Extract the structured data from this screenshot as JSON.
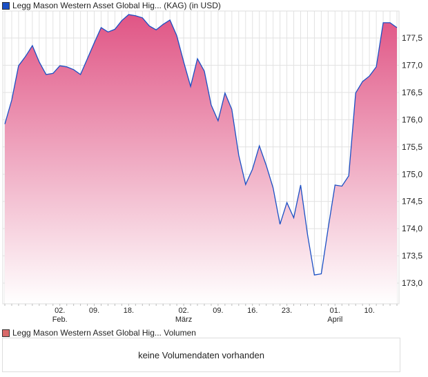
{
  "legend_main": "Legg Mason Western Asset Global Hig... (KAG) (in USD)",
  "legend_volume": "Legg Mason Western Asset Global Hig... Volumen",
  "volume_message": "keine Volumendaten vorhanden",
  "colors": {
    "line": "#1a4fc4",
    "fill_top": "#e05585",
    "legend_main": "#1a4fc4",
    "legend_volume": "#d96a6a"
  },
  "chart_data": {
    "type": "area",
    "title": "Legg Mason Western Asset Global Hig... (KAG) (in USD)",
    "ylim": [
      172.7,
      178.0
    ],
    "yticks": [
      "173,0",
      "173,5",
      "174,0",
      "174,5",
      "175,0",
      "175,5",
      "176,0",
      "176,5",
      "177,0",
      "177,5"
    ],
    "ytick_values": [
      173.0,
      173.5,
      174.0,
      174.5,
      175.0,
      175.5,
      176.0,
      176.5,
      177.0,
      177.5
    ],
    "xticks": [
      {
        "index": 8,
        "label": "02.",
        "sub": "Feb."
      },
      {
        "index": 13,
        "label": "09.",
        "sub": ""
      },
      {
        "index": 18,
        "label": "18.",
        "sub": ""
      },
      {
        "index": 26,
        "label": "02.",
        "sub": "März"
      },
      {
        "index": 31,
        "label": "09.",
        "sub": ""
      },
      {
        "index": 36,
        "label": "16.",
        "sub": ""
      },
      {
        "index": 41,
        "label": "23.",
        "sub": ""
      },
      {
        "index": 48,
        "label": "01.",
        "sub": "April"
      },
      {
        "index": 53,
        "label": "10.",
        "sub": ""
      }
    ],
    "values": [
      175.92,
      176.36,
      176.99,
      177.16,
      177.36,
      177.06,
      176.83,
      176.85,
      176.99,
      176.97,
      176.92,
      176.83,
      177.12,
      177.41,
      177.69,
      177.61,
      177.66,
      177.82,
      177.93,
      177.91,
      177.87,
      177.72,
      177.65,
      177.75,
      177.83,
      177.54,
      177.06,
      176.61,
      177.12,
      176.89,
      176.27,
      175.98,
      176.49,
      176.19,
      175.35,
      174.81,
      175.09,
      175.52,
      175.16,
      174.75,
      174.08,
      174.48,
      174.2,
      174.8,
      173.89,
      173.15,
      173.17,
      174.01,
      174.8,
      174.78,
      174.97,
      176.49,
      176.7,
      176.8,
      176.97,
      177.78,
      177.78,
      177.69
    ]
  }
}
